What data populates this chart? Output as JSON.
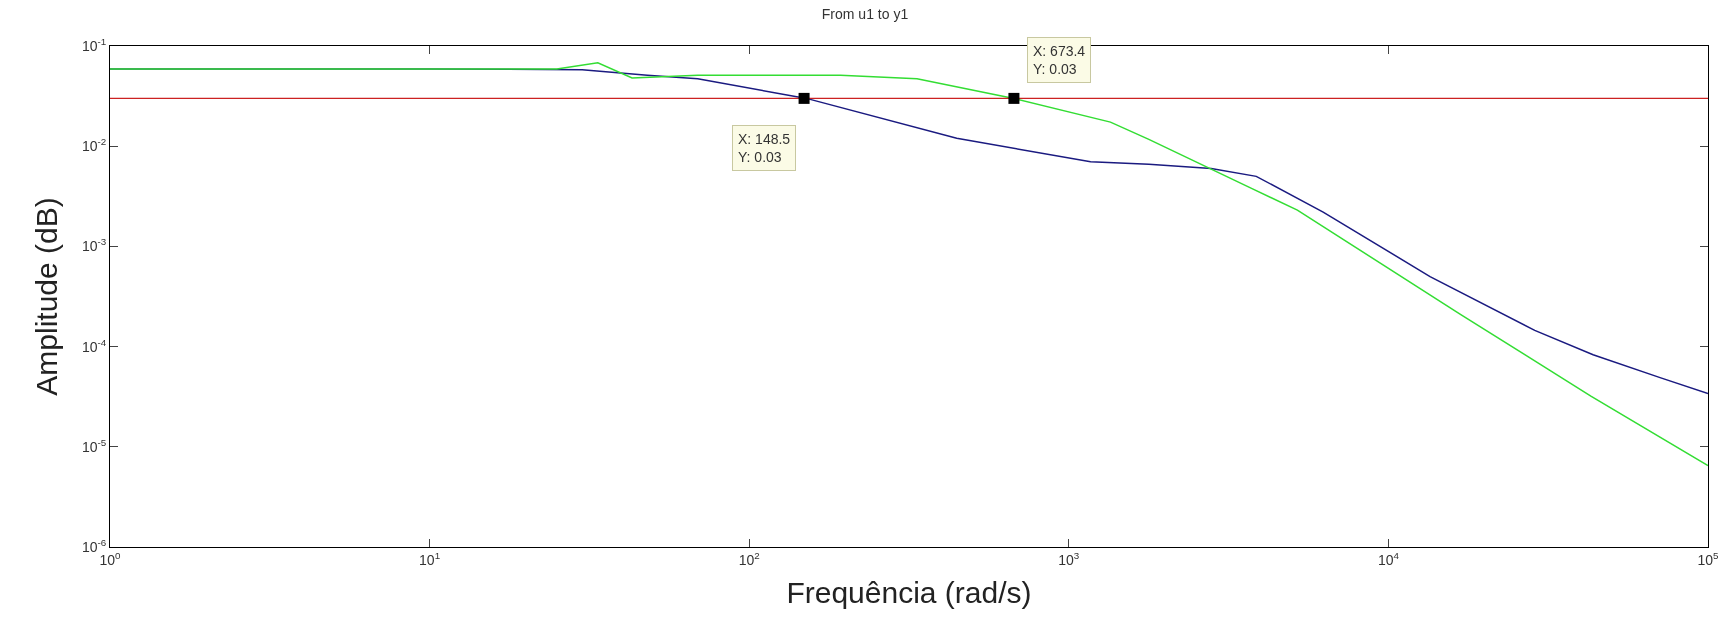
{
  "chart_data": {
    "type": "line",
    "title": "From u1 to y1",
    "xlabel": "Frequência (rad/s)",
    "ylabel": "Amplitude (dB)",
    "log": "xy",
    "marker": "none",
    "line_style": "solid",
    "xlim": [
      1,
      100000
    ],
    "ylim": [
      1e-06,
      0.1
    ],
    "xticks": [
      {
        "value": 1,
        "label": "10$^{0}$"
      },
      {
        "value": 10,
        "label": "10$^{1}$"
      },
      {
        "value": 100,
        "label": "10$^{2}$"
      },
      {
        "value": 1000,
        "label": "10$^{3}$"
      },
      {
        "value": 10000,
        "label": "10$^{4}$"
      },
      {
        "value": 100000,
        "label": "10$^{5}$"
      }
    ],
    "yticks": [
      {
        "value": 1e-06,
        "label": "10$^{-6}$"
      },
      {
        "value": 1e-05,
        "label": "10$^{-5}$"
      },
      {
        "value": 0.0001,
        "label": "10$^{-4}$"
      },
      {
        "value": 0.001,
        "label": "10$^{-3}$"
      },
      {
        "value": 0.01,
        "label": "10$^{-2}$"
      },
      {
        "value": 0.1,
        "label": "10$^{-1}$"
      }
    ],
    "series": [
      {
        "color": "#1a1a80",
        "x": [
          1,
          10,
          30,
          48,
          69,
          151,
          446,
          1170,
          1780,
          2790,
          3860,
          6250,
          13500,
          28700,
          43700,
          70800,
          100000
        ],
        "values": [
          0.059,
          0.059,
          0.058,
          0.051,
          0.047,
          0.03,
          0.012,
          0.007,
          0.0066,
          0.006,
          0.005,
          0.0022,
          0.0005,
          0.000145,
          8.3e-05,
          4.9e-05,
          3.4e-05
        ]
      },
      {
        "color": "#33dd33",
        "x": [
          1,
          10,
          25,
          33.6,
          43,
          69,
          193,
          335,
          673.4,
          1350,
          1780,
          3730,
          5190,
          16800,
          43000,
          100000
        ],
        "values": [
          0.059,
          0.059,
          0.059,
          0.068,
          0.048,
          0.051,
          0.051,
          0.047,
          0.03,
          0.0174,
          0.0117,
          0.0038,
          0.0023,
          0.00021,
          3.2e-05,
          6.5e-06
        ]
      }
    ],
    "ref_lines": [
      {
        "axis": "y",
        "value": 0.03,
        "color": "#cc2222"
      }
    ],
    "annotations": [
      {
        "text": "X: 148.5\nY: 0.03",
        "x": 148.5,
        "y": 0.03
      },
      {
        "text": "X: 673.4\nY: 0.03",
        "x": 673.4,
        "y": 0.03
      }
    ]
  }
}
